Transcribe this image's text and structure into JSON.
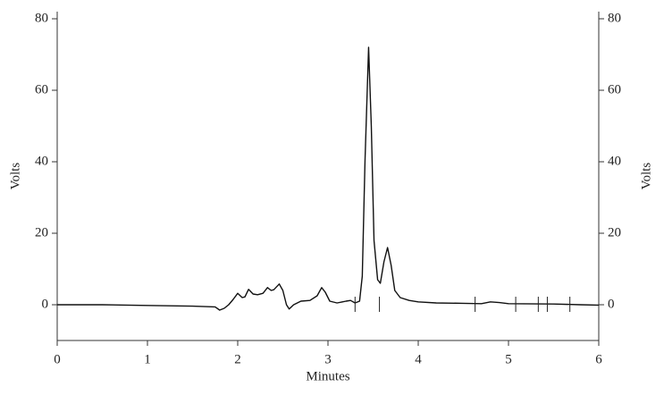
{
  "chart_data": {
    "type": "line",
    "xlabel": "Minutes",
    "ylabel": "Volts",
    "y2label": "Volts",
    "x": [
      0,
      0.5,
      1.0,
      1.5,
      1.75,
      1.8,
      1.85,
      1.9,
      1.95,
      2.0,
      2.05,
      2.08,
      2.12,
      2.17,
      2.22,
      2.28,
      2.33,
      2.37,
      2.4,
      2.46,
      2.5,
      2.54,
      2.57,
      2.62,
      2.7,
      2.8,
      2.88,
      2.93,
      2.97,
      3.02,
      3.1,
      3.2,
      3.25,
      3.3,
      3.35,
      3.38,
      3.41,
      3.45,
      3.48,
      3.51,
      3.55,
      3.58,
      3.62,
      3.66,
      3.7,
      3.74,
      3.8,
      3.9,
      4.0,
      4.2,
      4.5,
      4.7,
      4.8,
      4.9,
      5.0,
      5.5,
      5.8,
      6.0
    ],
    "series": [
      {
        "color": "#111111",
        "values": [
          0,
          0,
          -0.2,
          -0.4,
          -0.6,
          -1.5,
          -1,
          0,
          1.5,
          3.2,
          2,
          2.2,
          4.3,
          3,
          2.8,
          3.2,
          4.8,
          4,
          4.2,
          5.8,
          4,
          0,
          -1.2,
          0,
          1,
          1.2,
          2.5,
          4.8,
          3.5,
          1,
          0.5,
          1,
          1.2,
          0.5,
          1,
          8,
          40,
          72,
          50,
          18,
          7,
          6,
          12,
          16,
          11,
          4,
          2,
          1.2,
          0.8,
          0.5,
          0.4,
          0.3,
          0.8,
          0.6,
          0.3,
          0.2,
          0,
          -0.1
        ]
      }
    ],
    "markers": [
      3.3,
      3.57,
      4.63,
      5.08,
      5.33,
      5.43,
      5.68
    ],
    "xlim": [
      0,
      6
    ],
    "xticks": [
      0,
      1,
      2,
      3,
      4,
      5,
      6
    ],
    "ylim": [
      -10,
      82
    ],
    "yticks": [
      0,
      20,
      40,
      60,
      80
    ],
    "y2lim": [
      -10,
      82
    ],
    "y2ticks": [
      0,
      20,
      40,
      60,
      80
    ]
  }
}
